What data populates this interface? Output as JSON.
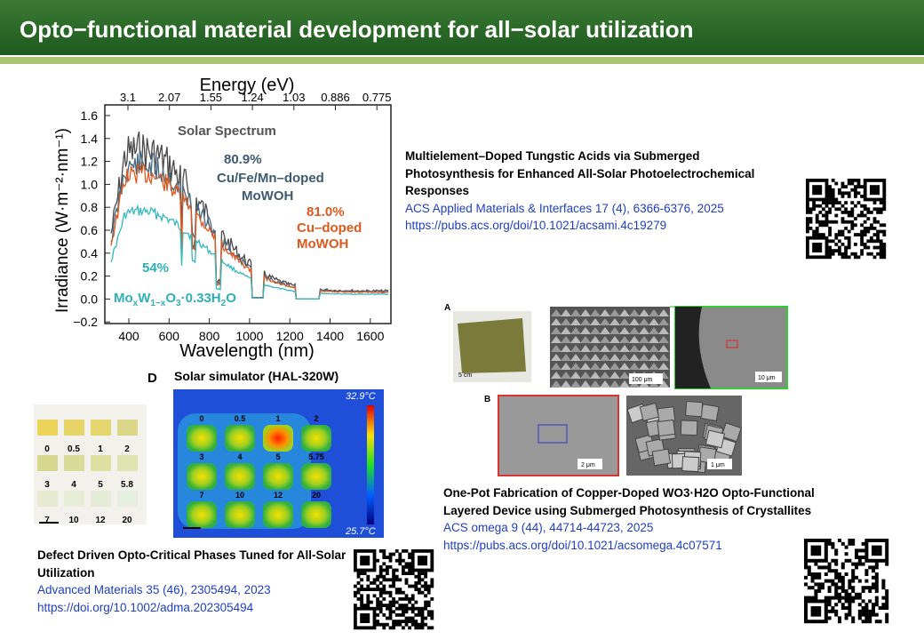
{
  "header": {
    "title": "Opto−functional material development for all−solar utilization"
  },
  "spectrum_figure": {
    "top_axis_title": "Energy (eV)",
    "top_ticks": [
      "3.1",
      "2.07",
      "1.55",
      "1.24",
      "1.03",
      "0.886",
      "0.775"
    ],
    "y_axis_title": "Irradiance (W·m⁻²·nm⁻¹)",
    "y_ticks": [
      "1.6",
      "1.4",
      "1.2",
      "1.0",
      "0.8",
      "0.6",
      "0.4",
      "0.2",
      "0.0",
      "−0.2"
    ],
    "x_axis_title": "Wavelength (nm)",
    "x_ticks": [
      "400",
      "600",
      "800",
      "1000",
      "1200",
      "1400",
      "1600"
    ],
    "annotations": {
      "solar": "Solar Spectrum",
      "multi_pct": "80.9%",
      "multi_line1": "Cu/Fe/Mn–doped",
      "multi_line2": "MoWOH",
      "cu_pct": "81.0%",
      "cu_line1": "Cu–doped",
      "cu_line2": "MoWOH",
      "base_pct": "54%",
      "formula": [
        "Mo",
        "x",
        "W",
        "1−x",
        "O",
        "3",
        "·0.33H",
        "2",
        "O"
      ]
    }
  },
  "thermal_figure": {
    "panel": "D",
    "caption": "Solar simulator (HAL-320W)",
    "t_max": "32.9°C",
    "t_min": "25.7°C",
    "labels": [
      "0",
      "0.5",
      "1",
      "2",
      "3",
      "4",
      "5",
      "5.75",
      "7",
      "10",
      "12",
      "20"
    ]
  },
  "photo_figure": {
    "labels": [
      "0",
      "0.5",
      "1",
      "2",
      "3",
      "4",
      "5",
      "5.8",
      "7",
      "10",
      "12",
      "20"
    ]
  },
  "sem_figure": {
    "panel_a": "A",
    "panel_b": "B",
    "scales": [
      "5 cm",
      "100 μm",
      "10 μm",
      "2 μm",
      "1 μm"
    ]
  },
  "references": [
    {
      "title": "Multielement–Doped Tungstic Acids via Submerged Photosynthesis for Enhanced All-Solar Photoelectrochemical Responses",
      "journal": "ACS Applied Materials & Interfaces 17 (4), 6366-6376, 2025",
      "url": "https://pubs.acs.org/doi/10.1021/acsami.4c19279"
    },
    {
      "title": "One-Pot Fabrication of Copper-Doped WO3·H2O Opto-Functional Layered Device using Submerged Photosynthesis of Crystallites",
      "journal": "ACS omega 9 (44), 44714-44723, 2025",
      "url": "https://pubs.acs.org/doi/10.1021/acsomega.4c07571"
    },
    {
      "title": "Defect Driven Opto-Critical Phases Tuned for All-Solar Utilization",
      "journal": "Advanced Materials 35 (46), 2305494, 2023",
      "url": " https://doi.org/10.1002/adma.202305494"
    }
  ]
}
